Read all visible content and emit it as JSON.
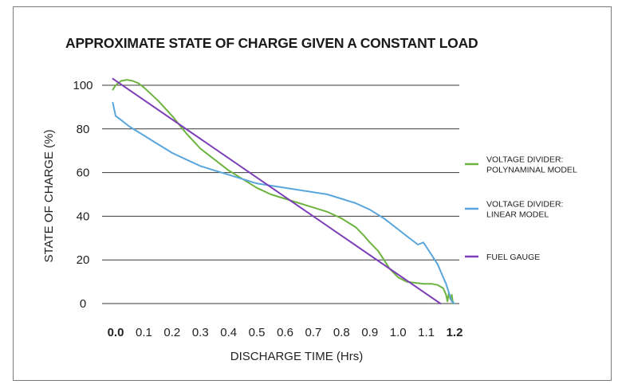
{
  "chart_data": {
    "type": "line",
    "title": "APPROXIMATE STATE OF CHARGE GIVEN A CONSTANT LOAD",
    "xlabel": "DISCHARGE TIME (Hrs)",
    "ylabel": "STATE OF CHARGE (%)",
    "xlim": [
      0.0,
      1.2
    ],
    "ylim": [
      0,
      100
    ],
    "x_ticks": [
      "0.0",
      "0.1",
      "0.2",
      "0.3",
      "0.4",
      "0.5",
      "0.6",
      "0.7",
      "0.8",
      "0.9",
      "1.0",
      "1.1",
      "1.2"
    ],
    "y_ticks": [
      "0",
      "20",
      "40",
      "60",
      "80",
      "100"
    ],
    "grid": "horizontal",
    "legend_position": "right",
    "series": [
      {
        "name": "VOLTAGE DIVIDER: POLYNAMINAL MODEL",
        "legend_lines": [
          "VOLTAGE DIVIDER:",
          "POLYNAMINAL MODEL"
        ],
        "color": "#6db33f",
        "x": [
          -0.01,
          0.0,
          0.02,
          0.04,
          0.06,
          0.08,
          0.1,
          0.15,
          0.2,
          0.25,
          0.3,
          0.35,
          0.4,
          0.45,
          0.5,
          0.55,
          0.6,
          0.65,
          0.7,
          0.75,
          0.8,
          0.85,
          0.88,
          0.9,
          0.93,
          0.95,
          0.97,
          1.0,
          1.03,
          1.06,
          1.09,
          1.12,
          1.14,
          1.16,
          1.17,
          1.175,
          1.18,
          1.185,
          1.19,
          1.195
        ],
        "y": [
          98,
          100,
          102,
          102.5,
          102,
          101,
          99,
          93,
          86,
          78,
          71,
          66,
          61,
          57,
          53,
          50,
          48,
          46,
          44,
          42,
          39,
          35,
          31,
          28,
          24,
          20,
          16,
          12,
          10,
          9.5,
          9,
          9,
          8.5,
          7,
          4,
          1,
          5,
          2,
          4,
          0
        ]
      },
      {
        "name": "VOLTAGE DIVIDER: LINEAR MODEL",
        "legend_lines": [
          "VOLTAGE DIVIDER:",
          "LINEAR MODEL"
        ],
        "color": "#5aa6dc",
        "x": [
          -0.01,
          0.0,
          0.02,
          0.05,
          0.1,
          0.15,
          0.2,
          0.25,
          0.3,
          0.35,
          0.4,
          0.45,
          0.5,
          0.55,
          0.6,
          0.65,
          0.7,
          0.75,
          0.8,
          0.85,
          0.9,
          0.95,
          1.0,
          1.03,
          1.05,
          1.07,
          1.09,
          1.1,
          1.11,
          1.12,
          1.13,
          1.14,
          1.15,
          1.16,
          1.17,
          1.18,
          1.19,
          1.2
        ],
        "y": [
          92,
          86,
          84,
          81,
          77,
          73,
          69,
          66,
          63,
          61,
          59,
          57,
          55,
          54,
          53,
          52,
          51,
          50,
          48,
          46,
          43,
          39,
          34,
          31,
          29,
          27,
          28,
          26,
          24,
          22,
          20,
          18,
          15,
          12,
          9,
          5,
          1,
          0
        ]
      },
      {
        "name": "FUEL GAUGE",
        "legend_lines": [
          "FUEL GAUGE"
        ],
        "color": "#7d3fb8",
        "x": [
          -0.01,
          1.15
        ],
        "y": [
          103,
          0
        ]
      }
    ]
  }
}
